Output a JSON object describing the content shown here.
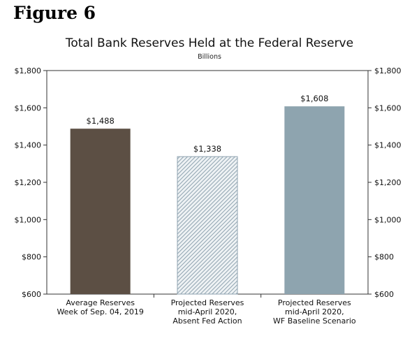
{
  "figure_label": "Figure 6",
  "chart_data": {
    "type": "bar",
    "title": "Total Bank Reserves Held at the Federal Reserve",
    "subtitle": "Billions",
    "xlabel": "",
    "ylabel": "",
    "ylim": [
      600,
      1800
    ],
    "yticks": [
      600,
      800,
      1000,
      1200,
      1400,
      1600,
      1800
    ],
    "ytick_labels": [
      "$600",
      "$800",
      "$1,000",
      "$1,200",
      "$1,400",
      "$1,600",
      "$1,800"
    ],
    "grid": false,
    "dual_y_axis": true,
    "categories": [
      [
        "Average Reserves",
        "Week of Sep. 04, 2019"
      ],
      [
        "Projected Reserves",
        "mid-April 2020,",
        "Absent Fed Action"
      ],
      [
        "Projected Reserves",
        "mid-April 2020,",
        "WF Baseline Scenario"
      ]
    ],
    "values": [
      1488,
      1338,
      1608
    ],
    "data_labels": [
      "$1,488",
      "$1,338",
      "$1,608"
    ],
    "colors": [
      "#5c4f44",
      "hatched-#8fa3b0",
      "#8ea4af"
    ]
  }
}
